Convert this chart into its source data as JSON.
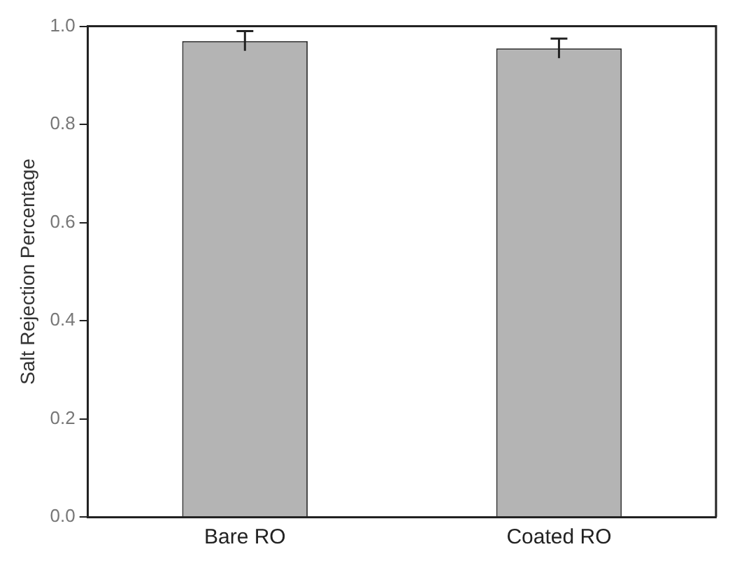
{
  "chart_data": {
    "type": "bar",
    "ylabel": "Salt Rejection Percentage",
    "categories": [
      "Bare RO",
      "Coated RO"
    ],
    "values": [
      0.97,
      0.955
    ],
    "errors": [
      0.02,
      0.02
    ],
    "color": "#b4b4b4",
    "ylim": [
      0,
      1.0
    ],
    "yticks": [
      {
        "value": 0,
        "label": "0.0"
      },
      {
        "value": 0.2,
        "label": "0.2"
      },
      {
        "value": 0.4,
        "label": "0.4"
      },
      {
        "value": 0.6,
        "label": "0.6"
      },
      {
        "value": 0.8,
        "label": "0.8"
      },
      {
        "value": 1.0,
        "label": "1.0"
      }
    ],
    "grid": false,
    "legend": false
  }
}
